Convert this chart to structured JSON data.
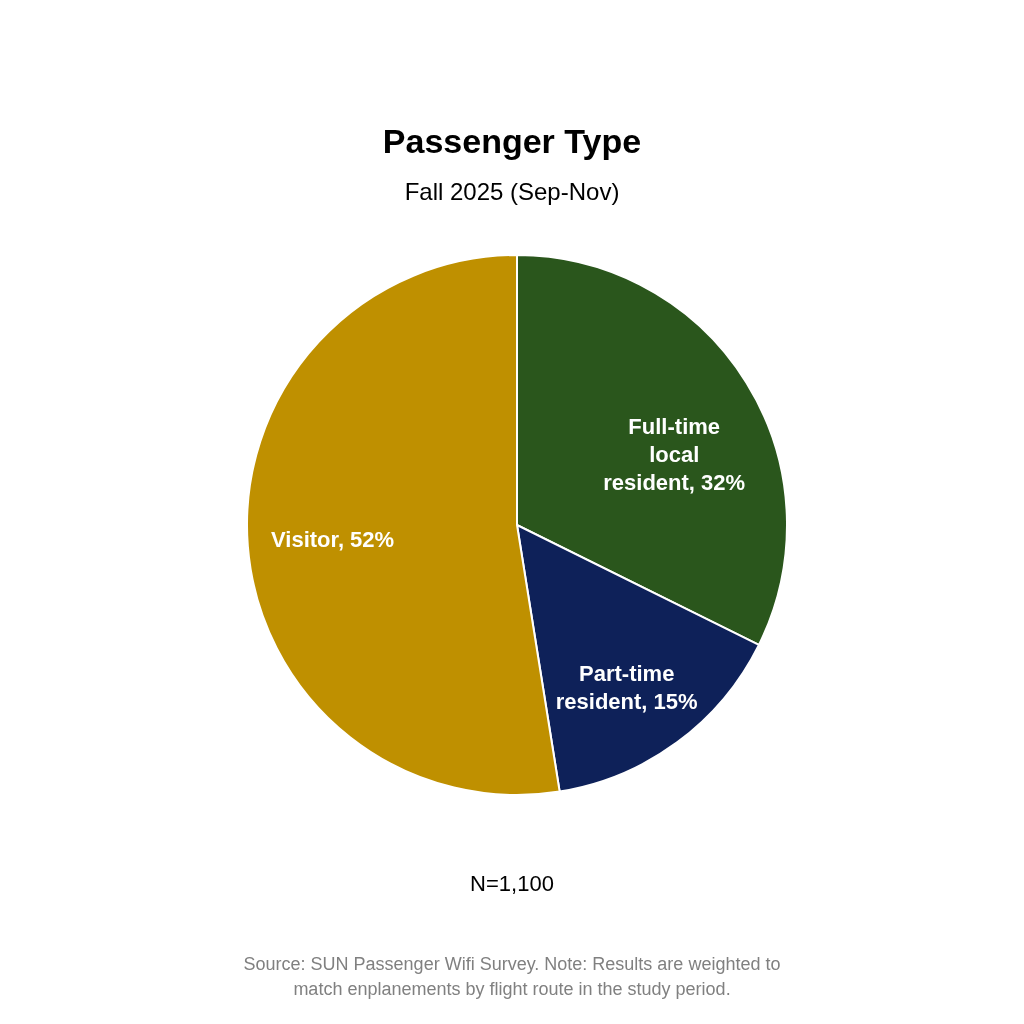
{
  "chart_data": {
    "type": "pie",
    "title": "Passenger Type",
    "subtitle": "Fall 2025 (Sep-Nov)",
    "categories": [
      "Full-time local resident",
      "Part-time resident",
      "Visitor"
    ],
    "values": [
      32,
      15,
      52
    ],
    "value_labels": [
      "32%",
      "15%",
      "52%"
    ],
    "colors": [
      "#2a561c",
      "#0e2159",
      "#bf9000"
    ],
    "legend": false,
    "annotations": [
      "N=1,100",
      "Source: SUN Passenger Wifi Survey.  Note: Results are weighted to match enplanements by flight route in the study period."
    ]
  }
}
